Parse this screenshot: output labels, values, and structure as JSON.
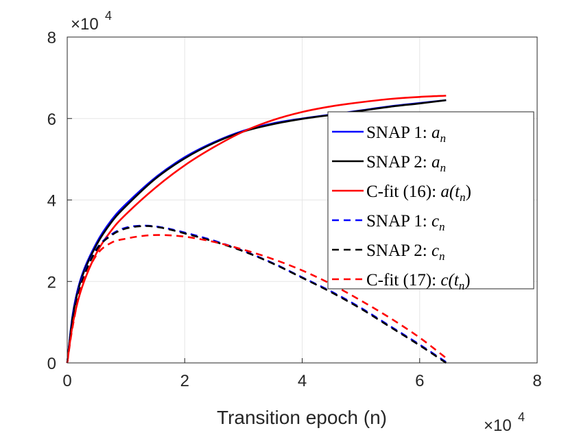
{
  "chart_data": {
    "type": "line",
    "xlabel": "Transition epoch (n)",
    "x_multiplier": "×10",
    "x_multiplier_exp": "4",
    "y_multiplier": "×10",
    "y_multiplier_exp": "4",
    "xlim": [
      0,
      8
    ],
    "ylim": [
      0,
      8
    ],
    "x_ticks": [
      "0",
      "2",
      "4",
      "6",
      "8"
    ],
    "y_ticks": [
      "0",
      "2",
      "4",
      "6",
      "8"
    ],
    "grid": true,
    "legend_position": "right-center",
    "series": [
      {
        "name": "SNAP 1: a_n",
        "legend_prefix": "SNAP 1: ",
        "legend_var": "a",
        "legend_sub": "n",
        "legend_suffix": "",
        "color": "#0000ff",
        "dash": "solid",
        "x": [
          0,
          0.1,
          0.25,
          0.5,
          0.75,
          1.0,
          1.5,
          2.0,
          2.5,
          3.0,
          3.5,
          4.0,
          4.5,
          5.0,
          5.5,
          6.0,
          6.45
        ],
        "y": [
          0,
          1.25,
          2.15,
          2.95,
          3.5,
          3.9,
          4.55,
          5.05,
          5.42,
          5.7,
          5.88,
          6.0,
          6.1,
          6.2,
          6.3,
          6.38,
          6.45
        ]
      },
      {
        "name": "SNAP 2: a_n",
        "legend_prefix": "SNAP 2: ",
        "legend_var": "a",
        "legend_sub": "n",
        "legend_suffix": "",
        "color": "#000000",
        "dash": "solid",
        "x": [
          0,
          0.1,
          0.25,
          0.5,
          0.75,
          1.0,
          1.5,
          2.0,
          2.5,
          3.0,
          3.5,
          4.0,
          4.5,
          5.0,
          5.5,
          6.0,
          6.45
        ],
        "y": [
          0,
          1.2,
          2.1,
          2.9,
          3.45,
          3.85,
          4.52,
          5.02,
          5.4,
          5.68,
          5.86,
          5.99,
          6.09,
          6.19,
          6.29,
          6.37,
          6.45
        ]
      },
      {
        "name": "C-fit (16): a(t_n)",
        "legend_prefix": "C-fit (16): ",
        "legend_var": "a(t",
        "legend_sub": "n",
        "legend_suffix": ")",
        "color": "#ff0000",
        "dash": "solid",
        "x": [
          0,
          0.1,
          0.25,
          0.5,
          0.75,
          1.0,
          1.5,
          2.0,
          2.5,
          3.0,
          3.5,
          4.0,
          4.5,
          5.0,
          5.5,
          6.0,
          6.45
        ],
        "y": [
          0,
          1.0,
          1.85,
          2.7,
          3.25,
          3.65,
          4.3,
          4.85,
          5.3,
          5.68,
          5.96,
          6.16,
          6.3,
          6.4,
          6.48,
          6.53,
          6.56
        ]
      },
      {
        "name": "SNAP 1: c_n",
        "legend_prefix": "SNAP 1: ",
        "legend_var": "c",
        "legend_sub": "n",
        "legend_suffix": "",
        "color": "#0000ff",
        "dash": "dashed",
        "x": [
          0,
          0.1,
          0.25,
          0.5,
          0.75,
          1.0,
          1.3,
          1.6,
          2.0,
          2.5,
          3.0,
          3.5,
          4.0,
          4.5,
          5.0,
          5.5,
          6.0,
          6.45
        ],
        "y": [
          0,
          1.15,
          2.05,
          2.8,
          3.15,
          3.32,
          3.37,
          3.33,
          3.2,
          3.0,
          2.75,
          2.45,
          2.1,
          1.75,
          1.35,
          0.9,
          0.45,
          0.02
        ]
      },
      {
        "name": "SNAP 2: c_n",
        "legend_prefix": "SNAP 2: ",
        "legend_var": "c",
        "legend_sub": "n",
        "legend_suffix": "",
        "color": "#000000",
        "dash": "dashed",
        "x": [
          0,
          0.1,
          0.25,
          0.5,
          0.75,
          1.0,
          1.3,
          1.6,
          2.0,
          2.5,
          3.0,
          3.5,
          4.0,
          4.5,
          5.0,
          5.5,
          6.0,
          6.45
        ],
        "y": [
          0,
          1.1,
          2.0,
          2.78,
          3.13,
          3.3,
          3.36,
          3.32,
          3.18,
          2.98,
          2.74,
          2.44,
          2.09,
          1.73,
          1.33,
          0.88,
          0.43,
          0.0
        ]
      },
      {
        "name": "C-fit (17): c(t_n)",
        "legend_prefix": "C-fit (17): ",
        "legend_var": "c(t",
        "legend_sub": "n",
        "legend_suffix": ")",
        "color": "#ff0000",
        "dash": "dashed",
        "x": [
          0,
          0.1,
          0.25,
          0.5,
          0.75,
          1.0,
          1.3,
          1.6,
          2.0,
          2.5,
          3.0,
          3.5,
          4.0,
          4.5,
          5.0,
          5.5,
          6.0,
          6.45
        ],
        "y": [
          0,
          0.95,
          1.9,
          2.65,
          2.95,
          3.05,
          3.12,
          3.14,
          3.1,
          2.97,
          2.78,
          2.55,
          2.27,
          1.93,
          1.53,
          1.1,
          0.62,
          0.12
        ]
      }
    ]
  }
}
